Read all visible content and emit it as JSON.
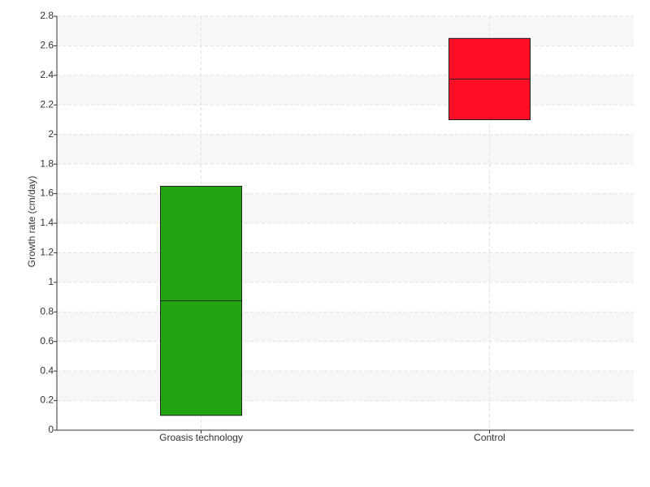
{
  "chart_data": {
    "type": "box",
    "y_label": "Growth rate (cm/day)",
    "categories": [
      "Groasis technology",
      "Control"
    ],
    "low": [
      0.1,
      2.1
    ],
    "median": [
      0.875,
      2.375
    ],
    "high": [
      1.65,
      2.65
    ],
    "colors": [
      "#22a511",
      "#ff0e27"
    ],
    "ylim": [
      0,
      2.8
    ],
    "yticks": [
      0,
      0.2,
      0.4,
      0.6,
      0.8,
      1,
      1.2,
      1.4,
      1.6,
      1.8,
      2,
      2.2,
      2.4,
      2.6,
      2.8
    ],
    "grid": true
  }
}
